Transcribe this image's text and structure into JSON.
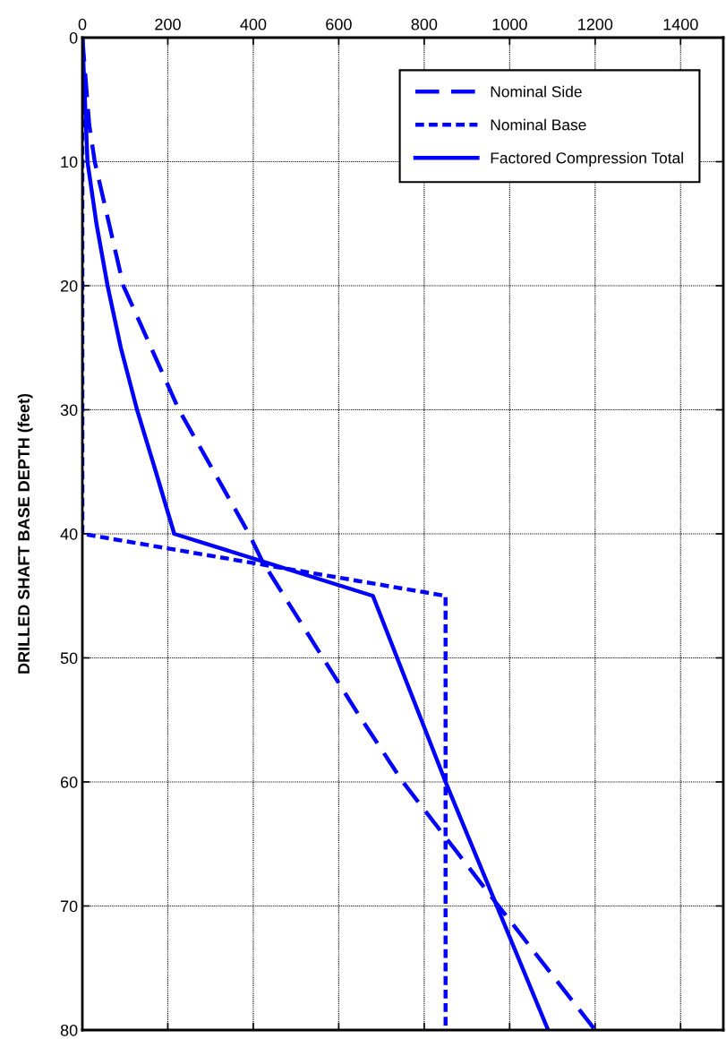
{
  "chart_data": {
    "type": "line",
    "ylabel": "DRILLED SHAFT BASE DEPTH (feet)",
    "xlim": [
      0,
      1500
    ],
    "xticks": [
      0,
      200,
      400,
      600,
      800,
      1000,
      1200,
      1400
    ],
    "ylim": [
      80,
      0
    ],
    "yticks": [
      0,
      10,
      20,
      30,
      40,
      50,
      60,
      70,
      80
    ],
    "grid": true,
    "legend": "top right",
    "series": [
      {
        "name": "Nominal Side",
        "color": "#0000ff",
        "line_style": "dashed",
        "x": [
          0,
          16,
          29,
          96,
          226,
          390,
          421,
          645,
          750,
          974,
          1200
        ],
        "values": [
          0,
          7,
          10,
          20,
          30,
          40,
          42.2,
          54.5,
          60,
          70,
          80
        ]
      },
      {
        "name": "Nominal Base",
        "color": "#0000ff",
        "line_style": "dotted",
        "x": [
          0,
          0,
          850,
          850
        ],
        "values": [
          0,
          40,
          45,
          80
        ]
      },
      {
        "name": "Factored Compression Total",
        "color": "#0000ff",
        "line_style": "solid",
        "x": [
          0,
          6,
          12,
          33,
          59,
          90,
          128,
          172,
          215,
          680,
          850,
          1090
        ],
        "values": [
          0,
          5,
          10,
          15,
          20,
          25,
          30,
          35,
          40,
          45,
          60,
          80
        ]
      }
    ]
  }
}
